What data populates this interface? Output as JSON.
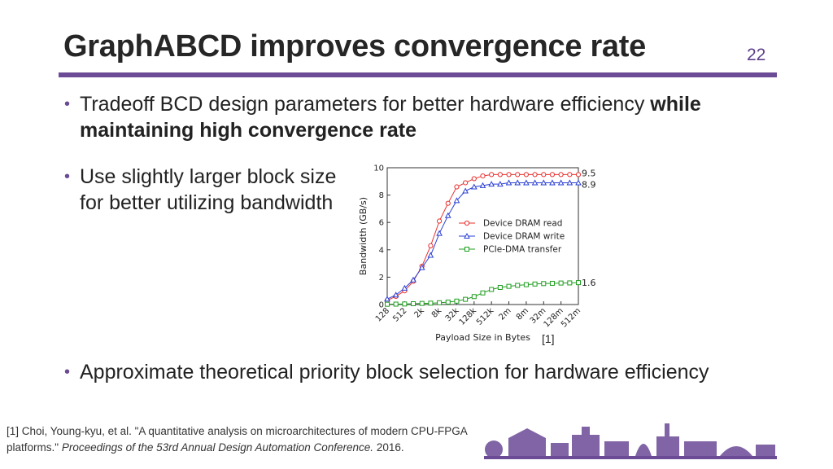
{
  "slide": {
    "title": "GraphABCD improves convergence rate",
    "page_number": "22",
    "accent_color": "#6b4a96"
  },
  "bullets": [
    {
      "text": "Tradeoff BCD design parameters for better hardware efficiency ",
      "bold": "while maintaining high convergence rate"
    },
    {
      "text": "Use slightly larger block size for better utilizing bandwidth"
    },
    {
      "text": "Approximate theoretical priority block selection for hardware efficiency"
    }
  ],
  "bullet_symbol": "•",
  "citation_marker": "[1]",
  "footnote": {
    "pre": "[1] Choi, Young-kyu, et al. \"A quantitative analysis on microarchitectures of modern CPU-FPGA platforms.\" ",
    "italic": "Proceedings of the 53rd Annual Design Automation Conference.",
    "post": " 2016."
  },
  "chart_data": {
    "type": "line",
    "xlabel": "Payload Size in Bytes",
    "ylabel": "Bandwidth (GB/s)",
    "ylim": [
      0,
      10
    ],
    "yticks": [
      "0",
      "2",
      "4",
      "6",
      "8",
      "10"
    ],
    "xticks": [
      "128",
      "512",
      "2k",
      "8k",
      "32k",
      "128k",
      "512k",
      "2m",
      "8m",
      "32m",
      "128m",
      "512m"
    ],
    "x": [
      "128",
      "256",
      "512",
      "1k",
      "2k",
      "4k",
      "8k",
      "16k",
      "32k",
      "64k",
      "128k",
      "256k",
      "512k",
      "1m",
      "2m",
      "4m",
      "8m",
      "16m",
      "32m",
      "64m",
      "128m",
      "256m",
      "512m"
    ],
    "legend_position": "center-right",
    "series": [
      {
        "name": "Device DRAM read",
        "color": "#e8312f",
        "marker": "circle",
        "end_label": "9.5",
        "values": [
          0.3,
          0.6,
          1.0,
          1.7,
          2.8,
          4.3,
          6.1,
          7.4,
          8.6,
          8.9,
          9.2,
          9.4,
          9.5,
          9.5,
          9.5,
          9.5,
          9.5,
          9.5,
          9.5,
          9.5,
          9.5,
          9.5,
          9.5
        ]
      },
      {
        "name": "Device DRAM write",
        "color": "#2a3fd4",
        "marker": "triangle",
        "end_label": "8.9",
        "values": [
          0.4,
          0.7,
          1.2,
          1.8,
          2.7,
          3.6,
          5.2,
          6.5,
          7.6,
          8.3,
          8.6,
          8.7,
          8.8,
          8.8,
          8.9,
          8.9,
          8.9,
          8.9,
          8.9,
          8.9,
          8.9,
          8.9,
          8.9
        ]
      },
      {
        "name": "PCIe-DMA transfer",
        "color": "#1f9e1f",
        "marker": "square",
        "end_label": "1.6",
        "values": [
          0.02,
          0.03,
          0.04,
          0.06,
          0.08,
          0.1,
          0.13,
          0.18,
          0.25,
          0.38,
          0.58,
          0.85,
          1.1,
          1.25,
          1.33,
          1.4,
          1.45,
          1.5,
          1.53,
          1.55,
          1.57,
          1.58,
          1.6
        ]
      }
    ]
  }
}
